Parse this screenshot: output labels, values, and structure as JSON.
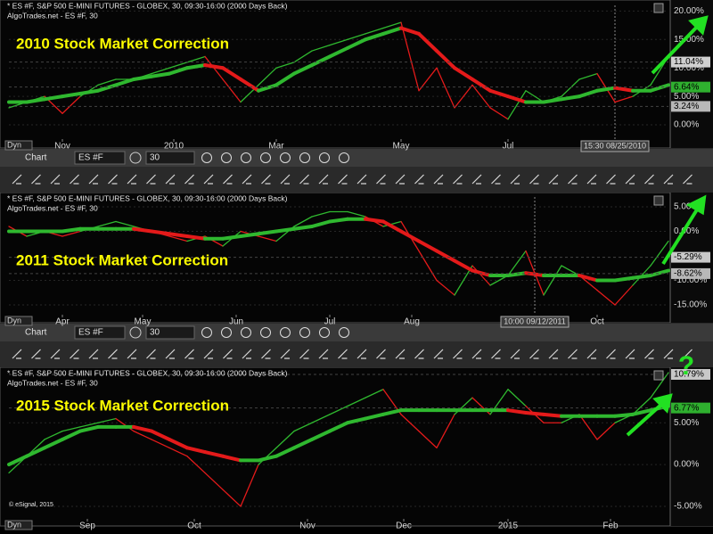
{
  "question": "?",
  "copyright": "© eSignal, 2015",
  "toolbars": [
    {
      "chart_label": "Chart",
      "symbol": "ES #F",
      "interval": "30"
    },
    {
      "chart_label": "Chart",
      "symbol": "ES #F",
      "interval": "30"
    }
  ],
  "panels": [
    {
      "header": "* ES #F, S&P 500 E-MINI FUTURES - GLOBEX, 30, 09:30-16:00 (2000 Days Back)",
      "subheader": "AlgoTrades.net - ES #F, 30",
      "title": "2010 Stock Market Correction",
      "dyn": "Dyn",
      "chart": {
        "type": "line",
        "xlim": [
          0,
          37
        ],
        "ylim": [
          -2.5,
          21
        ],
        "yticks": [
          {
            "value": 0,
            "label": "0.00%"
          },
          {
            "value": 5,
            "label": "5.00%"
          },
          {
            "value": 10,
            "label": "10.00%"
          },
          {
            "value": 15,
            "label": "15.00%"
          },
          {
            "value": 20,
            "label": "20.00%"
          }
        ],
        "xticks": [
          {
            "value": 3,
            "label": "Nov"
          },
          {
            "value": 9.25,
            "label": "2010"
          },
          {
            "value": 15,
            "label": "Mar"
          },
          {
            "value": 22,
            "label": "May"
          },
          {
            "value": 28,
            "label": "Jul"
          }
        ],
        "cursor": {
          "value": 34,
          "label": "15:30 08/25/2010"
        },
        "markers": [
          {
            "value": 11.04,
            "label": "11.04%",
            "color": "#d0d0d0"
          },
          {
            "value": 6.64,
            "label": "6.64%",
            "color": "#2fb02f"
          },
          {
            "value": 3.24,
            "label": "3.24%",
            "color": "#b8b8b8"
          }
        ],
        "series": [
          {
            "color": "#2fb82f",
            "down_color": "#e41a1a",
            "values": [
              3,
              4,
              5,
              2,
              5,
              7,
              8,
              8,
              9,
              10,
              11,
              12,
              8,
              4,
              7,
              10,
              11,
              13,
              14,
              15,
              16,
              17,
              18,
              6,
              10,
              3,
              7,
              3,
              1,
              6,
              4,
              5,
              8,
              9,
              4,
              5,
              7,
              12
            ]
          },
          {
            "color": "#2fb82f",
            "down_color": "#e41a1a",
            "values": [
              4,
              4,
              4.5,
              5,
              5.5,
              6,
              7,
              8,
              8.5,
              9,
              10,
              10.5,
              10,
              8,
              6,
              7,
              9,
              10.5,
              12,
              13.5,
              15,
              16,
              17,
              16,
              13,
              10,
              8,
              6,
              5,
              4,
              4,
              4.5,
              5,
              6,
              6.5,
              6,
              6,
              7
            ]
          }
        ]
      }
    },
    {
      "header": "* ES #F, S&P 500 E-MINI FUTURES - GLOBEX, 30, 09:30-16:00 (2000 Days Back)",
      "subheader": "AlgoTrades.net - ES #F, 30",
      "title": "2011 Stock Market Correction",
      "dyn": "Dyn",
      "chart": {
        "type": "line",
        "xlim": [
          0,
          37
        ],
        "ylim": [
          -17,
          7
        ],
        "yticks": [
          {
            "value": -15,
            "label": "-15.00%"
          },
          {
            "value": -10,
            "label": "-10.00%"
          },
          {
            "value": 0,
            "label": "0.00%"
          },
          {
            "value": 5,
            "label": "5.00%"
          }
        ],
        "xticks": [
          {
            "value": 3,
            "label": "Apr"
          },
          {
            "value": 7.5,
            "label": "May"
          },
          {
            "value": 12.75,
            "label": "Jun"
          },
          {
            "value": 18,
            "label": "Jul"
          },
          {
            "value": 22.6,
            "label": "Aug"
          },
          {
            "value": 33,
            "label": "Oct"
          }
        ],
        "cursor": {
          "value": 29.5,
          "label": "10:00 09/12/2011"
        },
        "markers": [
          {
            "value": -5.29,
            "label": "-5.29%",
            "color": "#c8c8c8"
          },
          {
            "value": -8.62,
            "label": "-8.62%",
            "color": "#b8b8b8"
          }
        ],
        "series": [
          {
            "color": "#2fb82f",
            "down_color": "#e41a1a",
            "values": [
              1,
              -1,
              0,
              -1,
              0,
              1,
              2,
              1,
              0,
              -1,
              -2,
              -1,
              -3,
              0,
              -1,
              -2,
              1,
              3,
              4,
              4,
              3,
              1,
              2,
              -4,
              -10,
              -13,
              -7,
              -11,
              -9,
              -4,
              -13,
              -7,
              -9,
              -12,
              -15,
              -11,
              -7,
              -2
            ]
          },
          {
            "color": "#2fb82f",
            "down_color": "#e41a1a",
            "values": [
              0,
              0,
              0,
              0,
              0.5,
              0.5,
              0.5,
              0.5,
              0,
              -0.5,
              -1,
              -1.5,
              -1.5,
              -1,
              -0.5,
              0,
              0.5,
              1,
              2,
              2.5,
              2.5,
              2,
              0,
              -2,
              -4,
              -6,
              -8,
              -9,
              -9,
              -8.5,
              -9,
              -9,
              -9,
              -10,
              -10,
              -9.5,
              -9,
              -8
            ]
          }
        ]
      }
    },
    {
      "header": "* ES #F, S&P 500 E-MINI FUTURES - GLOBEX, 30, 09:30-16:00 (2000 Days Back)",
      "subheader": "AlgoTrades.net - ES #F, 30",
      "title": "2015 Stock Market Correction",
      "dyn": "Dyn",
      "chart": {
        "type": "line",
        "xlim": [
          0,
          37
        ],
        "ylim": [
          -6.5,
          11
        ],
        "yticks": [
          {
            "value": -5,
            "label": "-5.00%"
          },
          {
            "value": 0,
            "label": "0.00%"
          },
          {
            "value": 5,
            "label": "5.00%"
          }
        ],
        "xticks": [
          {
            "value": 4.4,
            "label": "Sep"
          },
          {
            "value": 10.4,
            "label": "Oct"
          },
          {
            "value": 16.75,
            "label": "Nov"
          },
          {
            "value": 22.15,
            "label": "Dec"
          },
          {
            "value": 28,
            "label": "2015"
          },
          {
            "value": 33.75,
            "label": "Feb"
          }
        ],
        "markers": [
          {
            "value": 10.79,
            "label": "10.79%",
            "color": "#c8c8c8"
          },
          {
            "value": 6.77,
            "label": "6.77%",
            "color": "#2fb02f"
          }
        ],
        "series": [
          {
            "color": "#2fb82f",
            "down_color": "#e41a1a",
            "values": [
              -1,
              1,
              3,
              4,
              4.5,
              5,
              5.5,
              4,
              3,
              2,
              1,
              -1,
              -3,
              -5,
              0,
              2,
              4,
              5,
              6,
              7,
              8,
              9,
              6,
              4,
              2,
              6,
              8,
              6,
              9,
              7,
              5,
              5,
              6,
              3,
              5,
              6,
              8,
              11
            ]
          },
          {
            "color": "#2fb82f",
            "down_color": "#e41a1a",
            "values": [
              0,
              1,
              2,
              3,
              4,
              4.5,
              4.5,
              4.5,
              4,
              3,
              2,
              1.5,
              1,
              0.5,
              0.5,
              1,
              2,
              3,
              4,
              5,
              5.5,
              6,
              6.5,
              6.5,
              6.5,
              6.5,
              6.5,
              6.5,
              6.5,
              6.2,
              6,
              5.8,
              5.8,
              5.8,
              5.8,
              6,
              6.5,
              7
            ]
          }
        ]
      }
    }
  ]
}
